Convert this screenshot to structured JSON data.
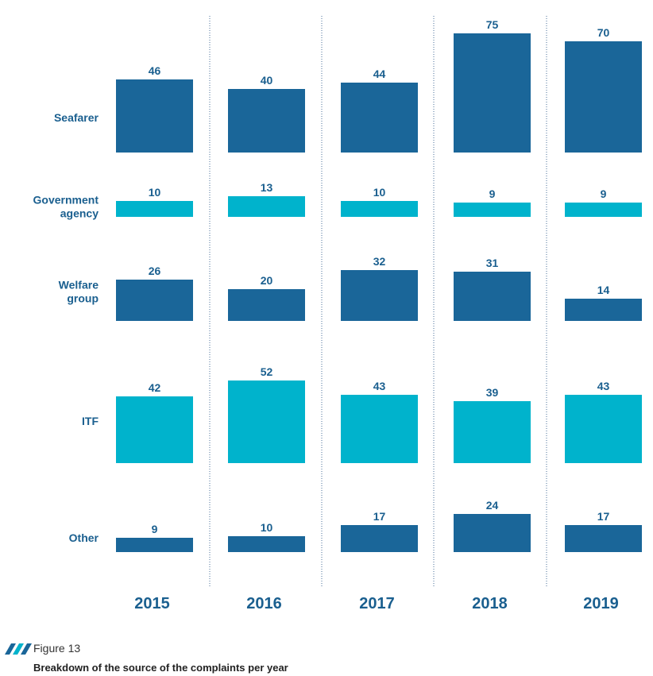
{
  "chart_data": {
    "type": "bar",
    "title": "Breakdown of the source of the complaints per year",
    "categories": [
      "2015",
      "2016",
      "2017",
      "2018",
      "2019"
    ],
    "series": [
      {
        "name": "Seafarer",
        "values": [
          46,
          40,
          44,
          75,
          70
        ],
        "color": "#1a6699"
      },
      {
        "name": "Government agency",
        "values": [
          10,
          13,
          10,
          9,
          9
        ],
        "color": "#00b3cc"
      },
      {
        "name": "Welfare group",
        "values": [
          26,
          20,
          32,
          31,
          14
        ],
        "color": "#1a6699"
      },
      {
        "name": "ITF",
        "values": [
          42,
          52,
          43,
          39,
          43
        ],
        "color": "#00b3cc"
      },
      {
        "name": "Other",
        "values": [
          9,
          10,
          17,
          24,
          17
        ],
        "color": "#1a6699"
      }
    ],
    "row_labels": [
      [
        "Seafarer"
      ],
      [
        "Government",
        "agency"
      ],
      [
        "Welfare",
        "group"
      ],
      [
        "ITF"
      ],
      [
        "Other"
      ]
    ],
    "grid": false,
    "legend": "none"
  },
  "caption": {
    "figure_number": "Figure 13",
    "title": "Breakdown of the source of the complaints per year"
  },
  "colors": {
    "dark_blue": "#1a6699",
    "cyan": "#00b3cc",
    "label_text": "#1a5f8f"
  }
}
